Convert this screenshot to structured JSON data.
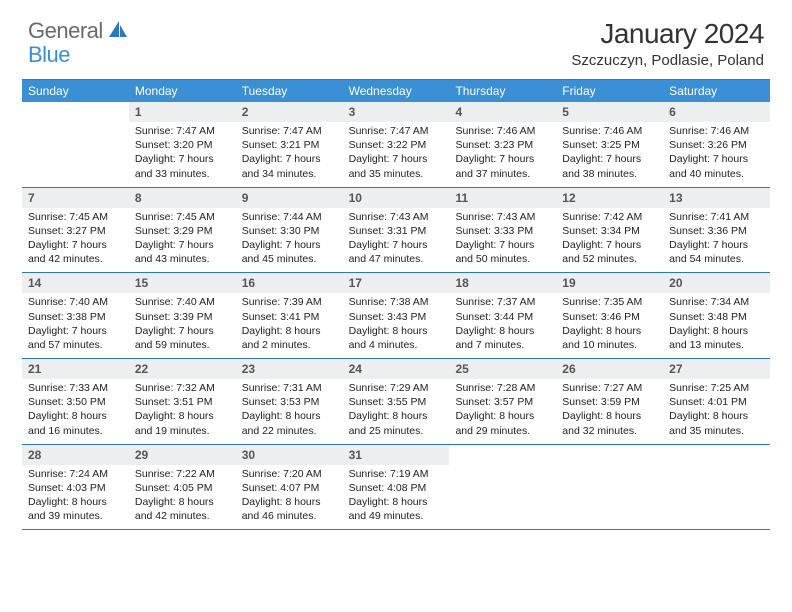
{
  "logo": {
    "general": "General",
    "blue": "Blue"
  },
  "title": "January 2024",
  "location": "Szczuczyn, Podlasie, Poland",
  "colors": {
    "header_bg": "#3b8fd4",
    "border": "#2d78bc",
    "daynum_bg": "#eceeef",
    "text": "#222222",
    "logo_gray": "#6a6a6a",
    "logo_blue": "#3b8fd4"
  },
  "weekdays": [
    "Sunday",
    "Monday",
    "Tuesday",
    "Wednesday",
    "Thursday",
    "Friday",
    "Saturday"
  ],
  "weeks": [
    [
      {
        "n": "",
        "lines": [
          "",
          "",
          "",
          ""
        ]
      },
      {
        "n": "1",
        "lines": [
          "Sunrise: 7:47 AM",
          "Sunset: 3:20 PM",
          "Daylight: 7 hours",
          "and 33 minutes."
        ]
      },
      {
        "n": "2",
        "lines": [
          "Sunrise: 7:47 AM",
          "Sunset: 3:21 PM",
          "Daylight: 7 hours",
          "and 34 minutes."
        ]
      },
      {
        "n": "3",
        "lines": [
          "Sunrise: 7:47 AM",
          "Sunset: 3:22 PM",
          "Daylight: 7 hours",
          "and 35 minutes."
        ]
      },
      {
        "n": "4",
        "lines": [
          "Sunrise: 7:46 AM",
          "Sunset: 3:23 PM",
          "Daylight: 7 hours",
          "and 37 minutes."
        ]
      },
      {
        "n": "5",
        "lines": [
          "Sunrise: 7:46 AM",
          "Sunset: 3:25 PM",
          "Daylight: 7 hours",
          "and 38 minutes."
        ]
      },
      {
        "n": "6",
        "lines": [
          "Sunrise: 7:46 AM",
          "Sunset: 3:26 PM",
          "Daylight: 7 hours",
          "and 40 minutes."
        ]
      }
    ],
    [
      {
        "n": "7",
        "lines": [
          "Sunrise: 7:45 AM",
          "Sunset: 3:27 PM",
          "Daylight: 7 hours",
          "and 42 minutes."
        ]
      },
      {
        "n": "8",
        "lines": [
          "Sunrise: 7:45 AM",
          "Sunset: 3:29 PM",
          "Daylight: 7 hours",
          "and 43 minutes."
        ]
      },
      {
        "n": "9",
        "lines": [
          "Sunrise: 7:44 AM",
          "Sunset: 3:30 PM",
          "Daylight: 7 hours",
          "and 45 minutes."
        ]
      },
      {
        "n": "10",
        "lines": [
          "Sunrise: 7:43 AM",
          "Sunset: 3:31 PM",
          "Daylight: 7 hours",
          "and 47 minutes."
        ]
      },
      {
        "n": "11",
        "lines": [
          "Sunrise: 7:43 AM",
          "Sunset: 3:33 PM",
          "Daylight: 7 hours",
          "and 50 minutes."
        ]
      },
      {
        "n": "12",
        "lines": [
          "Sunrise: 7:42 AM",
          "Sunset: 3:34 PM",
          "Daylight: 7 hours",
          "and 52 minutes."
        ]
      },
      {
        "n": "13",
        "lines": [
          "Sunrise: 7:41 AM",
          "Sunset: 3:36 PM",
          "Daylight: 7 hours",
          "and 54 minutes."
        ]
      }
    ],
    [
      {
        "n": "14",
        "lines": [
          "Sunrise: 7:40 AM",
          "Sunset: 3:38 PM",
          "Daylight: 7 hours",
          "and 57 minutes."
        ]
      },
      {
        "n": "15",
        "lines": [
          "Sunrise: 7:40 AM",
          "Sunset: 3:39 PM",
          "Daylight: 7 hours",
          "and 59 minutes."
        ]
      },
      {
        "n": "16",
        "lines": [
          "Sunrise: 7:39 AM",
          "Sunset: 3:41 PM",
          "Daylight: 8 hours",
          "and 2 minutes."
        ]
      },
      {
        "n": "17",
        "lines": [
          "Sunrise: 7:38 AM",
          "Sunset: 3:43 PM",
          "Daylight: 8 hours",
          "and 4 minutes."
        ]
      },
      {
        "n": "18",
        "lines": [
          "Sunrise: 7:37 AM",
          "Sunset: 3:44 PM",
          "Daylight: 8 hours",
          "and 7 minutes."
        ]
      },
      {
        "n": "19",
        "lines": [
          "Sunrise: 7:35 AM",
          "Sunset: 3:46 PM",
          "Daylight: 8 hours",
          "and 10 minutes."
        ]
      },
      {
        "n": "20",
        "lines": [
          "Sunrise: 7:34 AM",
          "Sunset: 3:48 PM",
          "Daylight: 8 hours",
          "and 13 minutes."
        ]
      }
    ],
    [
      {
        "n": "21",
        "lines": [
          "Sunrise: 7:33 AM",
          "Sunset: 3:50 PM",
          "Daylight: 8 hours",
          "and 16 minutes."
        ]
      },
      {
        "n": "22",
        "lines": [
          "Sunrise: 7:32 AM",
          "Sunset: 3:51 PM",
          "Daylight: 8 hours",
          "and 19 minutes."
        ]
      },
      {
        "n": "23",
        "lines": [
          "Sunrise: 7:31 AM",
          "Sunset: 3:53 PM",
          "Daylight: 8 hours",
          "and 22 minutes."
        ]
      },
      {
        "n": "24",
        "lines": [
          "Sunrise: 7:29 AM",
          "Sunset: 3:55 PM",
          "Daylight: 8 hours",
          "and 25 minutes."
        ]
      },
      {
        "n": "25",
        "lines": [
          "Sunrise: 7:28 AM",
          "Sunset: 3:57 PM",
          "Daylight: 8 hours",
          "and 29 minutes."
        ]
      },
      {
        "n": "26",
        "lines": [
          "Sunrise: 7:27 AM",
          "Sunset: 3:59 PM",
          "Daylight: 8 hours",
          "and 32 minutes."
        ]
      },
      {
        "n": "27",
        "lines": [
          "Sunrise: 7:25 AM",
          "Sunset: 4:01 PM",
          "Daylight: 8 hours",
          "and 35 minutes."
        ]
      }
    ],
    [
      {
        "n": "28",
        "lines": [
          "Sunrise: 7:24 AM",
          "Sunset: 4:03 PM",
          "Daylight: 8 hours",
          "and 39 minutes."
        ]
      },
      {
        "n": "29",
        "lines": [
          "Sunrise: 7:22 AM",
          "Sunset: 4:05 PM",
          "Daylight: 8 hours",
          "and 42 minutes."
        ]
      },
      {
        "n": "30",
        "lines": [
          "Sunrise: 7:20 AM",
          "Sunset: 4:07 PM",
          "Daylight: 8 hours",
          "and 46 minutes."
        ]
      },
      {
        "n": "31",
        "lines": [
          "Sunrise: 7:19 AM",
          "Sunset: 4:08 PM",
          "Daylight: 8 hours",
          "and 49 minutes."
        ]
      },
      {
        "n": "",
        "lines": [
          "",
          "",
          "",
          ""
        ]
      },
      {
        "n": "",
        "lines": [
          "",
          "",
          "",
          ""
        ]
      },
      {
        "n": "",
        "lines": [
          "",
          "",
          "",
          ""
        ]
      }
    ]
  ]
}
